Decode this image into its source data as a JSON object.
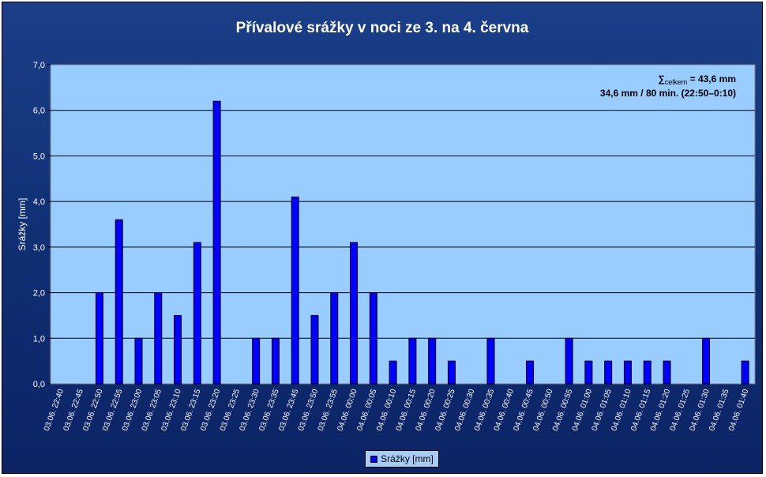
{
  "chart_data": {
    "type": "bar",
    "title": "Přívalové srážky v noci ze 3. na 4. června",
    "ylabel": "Srážky [mm]",
    "xlabel": "",
    "ylim": [
      0,
      7
    ],
    "yticks": [
      "0,0",
      "1,0",
      "2,0",
      "3,0",
      "4,0",
      "5,0",
      "6,0",
      "7,0"
    ],
    "grid": true,
    "legend_position": "bottom",
    "bar_color": "#0000ff",
    "plot_background": "#99ccff",
    "annotation_line1_symbol": "∑",
    "annotation_line1_sub": "celkem",
    "annotation_line1_value": " = 43,6 mm",
    "annotation_line2": "34,6 mm / 80 min. (22:50–0:10)",
    "series": [
      {
        "name": "Srážky [mm]",
        "values": [
          0,
          0,
          2,
          3.6,
          1,
          2,
          1.5,
          3.1,
          6.2,
          0,
          1,
          1,
          4.1,
          1.5,
          2,
          3.1,
          2,
          0.5,
          1,
          1,
          0.5,
          0,
          1,
          0,
          0.5,
          0,
          1,
          0.5,
          0.5,
          0.5,
          0.5,
          0.5,
          0,
          1,
          0,
          0.5
        ]
      }
    ],
    "categories": [
      "03.06. 22:40",
      "03.06. 22:45",
      "03.06. 22:50",
      "03.06. 22:55",
      "03.06. 23:00",
      "03.06. 23:05",
      "03.06. 23:10",
      "03.06. 23:15",
      "03.06. 23:20",
      "03.06. 23:25",
      "03.06. 23:30",
      "03.06. 23:35",
      "03.06. 23:45",
      "03.06. 23:50",
      "03.06. 23:55",
      "04.06. 00:00",
      "04.06. 00:05",
      "04.06. 00:10",
      "04.06. 00:15",
      "04.06. 00:20",
      "04.06. 00:25",
      "04.06. 00:30",
      "04.06. 00:35",
      "04.06. 00:40",
      "04.06. 00:45",
      "04.06. 00:50",
      "04.06. 00:55",
      "04.06. 01:00",
      "04.06. 01:05",
      "04.06. 01:10",
      "04.06. 01:15",
      "04.06. 01:20",
      "04.06. 01:25",
      "04.06. 01:30",
      "04.06. 01:35",
      "04.06. 01:40"
    ]
  }
}
